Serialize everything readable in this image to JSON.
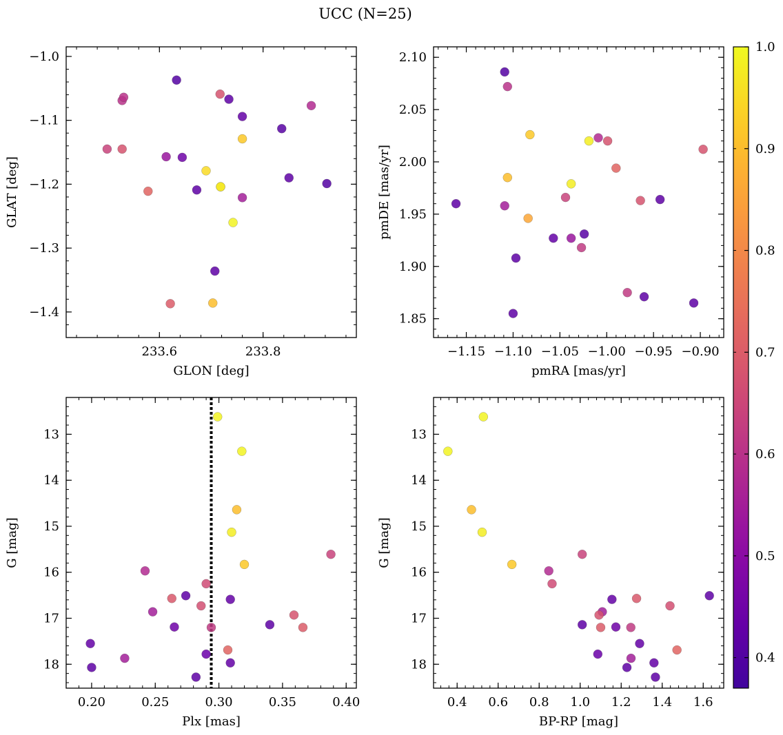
{
  "figure": {
    "title": "UCC (N=25)"
  },
  "colorbar": {
    "colormap": "plasma",
    "range": [
      0.37,
      1.0
    ],
    "ticks": [
      0.4,
      0.5,
      0.6,
      0.7,
      0.8,
      0.9,
      1.0
    ],
    "tick_labels": [
      "0.4",
      "0.5",
      "0.6",
      "0.7",
      "0.8",
      "0.9",
      "1.0"
    ]
  },
  "chart_data": [
    {
      "type": "scatter",
      "panel": "top-left",
      "xlabel": "GLON [deg]",
      "ylabel": "GLAT [deg]",
      "xlim": [
        233.42,
        233.98
      ],
      "ylim": [
        -1.44,
        -0.985
      ],
      "y_inverted": false,
      "xticks": [
        233.6,
        233.8
      ],
      "xtick_labels": [
        "233.6",
        "233.8"
      ],
      "yticks": [
        -1.0,
        -1.1,
        -1.2,
        -1.3,
        -1.4
      ],
      "ytick_labels": [
        "−1.0",
        "−1.1",
        "−1.2",
        "−1.3",
        "−1.4"
      ],
      "points": [
        {
          "x": 233.633,
          "y": -1.037,
          "c": 0.4
        },
        {
          "x": 233.717,
          "y": -1.059,
          "c": 0.68
        },
        {
          "x": 233.734,
          "y": -1.067,
          "c": 0.42
        },
        {
          "x": 233.528,
          "y": -1.069,
          "c": 0.6
        },
        {
          "x": 233.531,
          "y": -1.064,
          "c": 0.6
        },
        {
          "x": 233.893,
          "y": -1.077,
          "c": 0.58
        },
        {
          "x": 233.76,
          "y": -1.094,
          "c": 0.43
        },
        {
          "x": 233.836,
          "y": -1.113,
          "c": 0.41
        },
        {
          "x": 233.76,
          "y": -1.129,
          "c": 0.92
        },
        {
          "x": 233.499,
          "y": -1.145,
          "c": 0.64
        },
        {
          "x": 233.528,
          "y": -1.145,
          "c": 0.68
        },
        {
          "x": 233.613,
          "y": -1.157,
          "c": 0.53
        },
        {
          "x": 233.644,
          "y": -1.158,
          "c": 0.45
        },
        {
          "x": 233.69,
          "y": -1.179,
          "c": 0.95
        },
        {
          "x": 233.85,
          "y": -1.19,
          "c": 0.42
        },
        {
          "x": 233.923,
          "y": -1.199,
          "c": 0.4
        },
        {
          "x": 233.718,
          "y": -1.204,
          "c": 0.98
        },
        {
          "x": 233.718,
          "y": -1.204,
          "c": 0.97
        },
        {
          "x": 233.672,
          "y": -1.209,
          "c": 0.42
        },
        {
          "x": 233.578,
          "y": -1.211,
          "c": 0.72
        },
        {
          "x": 233.76,
          "y": -1.221,
          "c": 0.55
        },
        {
          "x": 233.742,
          "y": -1.26,
          "c": 0.99
        },
        {
          "x": 233.707,
          "y": -1.336,
          "c": 0.42
        },
        {
          "x": 233.621,
          "y": -1.387,
          "c": 0.7
        },
        {
          "x": 233.703,
          "y": -1.386,
          "c": 0.9
        }
      ]
    },
    {
      "type": "scatter",
      "panel": "top-right",
      "xlabel": "pmRA [mas/yr]",
      "ylabel": "pmDE [mas/yr]",
      "xlim": [
        -1.185,
        -0.875
      ],
      "ylim": [
        1.832,
        2.11
      ],
      "y_inverted": false,
      "xticks": [
        -1.15,
        -1.1,
        -1.05,
        -1.0,
        -0.95,
        -0.9
      ],
      "xtick_labels": [
        "−1.15",
        "−1.10",
        "−1.05",
        "−1.00",
        "−0.95",
        "−0.90"
      ],
      "yticks": [
        1.85,
        1.9,
        1.95,
        2.0,
        2.05,
        2.1
      ],
      "ytick_labels": [
        "1.85",
        "1.90",
        "1.95",
        "2.00",
        "2.05",
        "2.10"
      ],
      "points": [
        {
          "x": -1.109,
          "y": 2.086,
          "c": 0.4
        },
        {
          "x": -1.106,
          "y": 2.072,
          "c": 0.6
        },
        {
          "x": -1.082,
          "y": 2.026,
          "c": 0.92
        },
        {
          "x": -1.009,
          "y": 2.023,
          "c": 0.58
        },
        {
          "x": -1.019,
          "y": 2.02,
          "c": 0.98
        },
        {
          "x": -0.999,
          "y": 2.02,
          "c": 0.68
        },
        {
          "x": -0.897,
          "y": 2.012,
          "c": 0.68
        },
        {
          "x": -0.99,
          "y": 1.994,
          "c": 0.72
        },
        {
          "x": -1.106,
          "y": 1.985,
          "c": 0.9
        },
        {
          "x": -1.038,
          "y": 1.979,
          "c": 0.98
        },
        {
          "x": -1.044,
          "y": 1.966,
          "c": 0.64
        },
        {
          "x": -0.964,
          "y": 1.963,
          "c": 0.68
        },
        {
          "x": -0.943,
          "y": 1.964,
          "c": 0.42
        },
        {
          "x": -1.161,
          "y": 1.96,
          "c": 0.42
        },
        {
          "x": -1.109,
          "y": 1.958,
          "c": 0.55
        },
        {
          "x": -1.084,
          "y": 1.946,
          "c": 0.86
        },
        {
          "x": -1.024,
          "y": 1.931,
          "c": 0.41
        },
        {
          "x": -1.057,
          "y": 1.927,
          "c": 0.43
        },
        {
          "x": -1.038,
          "y": 1.927,
          "c": 0.53
        },
        {
          "x": -1.027,
          "y": 1.918,
          "c": 0.62
        },
        {
          "x": -1.097,
          "y": 1.908,
          "c": 0.42
        },
        {
          "x": -0.978,
          "y": 1.875,
          "c": 0.62
        },
        {
          "x": -0.96,
          "y": 1.871,
          "c": 0.42
        },
        {
          "x": -0.907,
          "y": 1.865,
          "c": 0.42
        },
        {
          "x": -1.1,
          "y": 1.855,
          "c": 0.42
        }
      ]
    },
    {
      "type": "scatter",
      "panel": "bottom-left",
      "xlabel": "Plx [mas]",
      "ylabel": "G [mag]",
      "xlim": [
        0.18,
        0.408
      ],
      "ylim": [
        18.52,
        12.2
      ],
      "y_inverted": true,
      "xticks": [
        0.2,
        0.25,
        0.3,
        0.35,
        0.4
      ],
      "xtick_labels": [
        "0.20",
        "0.25",
        "0.30",
        "0.35",
        "0.40"
      ],
      "yticks": [
        13,
        14,
        15,
        16,
        17,
        18
      ],
      "ytick_labels": [
        "13",
        "14",
        "15",
        "16",
        "17",
        "18"
      ],
      "vline": 0.294,
      "points": [
        {
          "x": 0.299,
          "y": 12.62,
          "c": 0.99
        },
        {
          "x": 0.318,
          "y": 13.37,
          "c": 0.99
        },
        {
          "x": 0.314,
          "y": 14.64,
          "c": 0.9
        },
        {
          "x": 0.31,
          "y": 15.13,
          "c": 0.98
        },
        {
          "x": 0.388,
          "y": 15.61,
          "c": 0.64
        },
        {
          "x": 0.32,
          "y": 15.83,
          "c": 0.92
        },
        {
          "x": 0.242,
          "y": 15.97,
          "c": 0.58
        },
        {
          "x": 0.29,
          "y": 16.25,
          "c": 0.66
        },
        {
          "x": 0.274,
          "y": 16.51,
          "c": 0.42
        },
        {
          "x": 0.263,
          "y": 16.57,
          "c": 0.69
        },
        {
          "x": 0.309,
          "y": 16.59,
          "c": 0.43
        },
        {
          "x": 0.286,
          "y": 16.73,
          "c": 0.67
        },
        {
          "x": 0.248,
          "y": 16.86,
          "c": 0.55
        },
        {
          "x": 0.359,
          "y": 16.93,
          "c": 0.68
        },
        {
          "x": 0.34,
          "y": 17.14,
          "c": 0.42
        },
        {
          "x": 0.265,
          "y": 17.19,
          "c": 0.45
        },
        {
          "x": 0.294,
          "y": 17.2,
          "c": 0.62
        },
        {
          "x": 0.366,
          "y": 17.2,
          "c": 0.7
        },
        {
          "x": 0.199,
          "y": 17.55,
          "c": 0.43
        },
        {
          "x": 0.307,
          "y": 17.69,
          "c": 0.72
        },
        {
          "x": 0.29,
          "y": 17.78,
          "c": 0.44
        },
        {
          "x": 0.226,
          "y": 17.87,
          "c": 0.55
        },
        {
          "x": 0.309,
          "y": 17.97,
          "c": 0.43
        },
        {
          "x": 0.2,
          "y": 18.07,
          "c": 0.42
        },
        {
          "x": 0.282,
          "y": 18.28,
          "c": 0.42
        }
      ]
    },
    {
      "type": "scatter",
      "panel": "bottom-right",
      "xlabel": "BP-RP [mag]",
      "ylabel": "G [mag]",
      "xlim": [
        0.285,
        1.7
      ],
      "ylim": [
        18.52,
        12.2
      ],
      "y_inverted": true,
      "xticks": [
        0.4,
        0.6,
        0.8,
        1.0,
        1.2,
        1.4,
        1.6
      ],
      "xtick_labels": [
        "0.4",
        "0.6",
        "0.8",
        "1.0",
        "1.2",
        "1.4",
        "1.6"
      ],
      "yticks": [
        13,
        14,
        15,
        16,
        17,
        18
      ],
      "ytick_labels": [
        "13",
        "14",
        "15",
        "16",
        "17",
        "18"
      ],
      "points": [
        {
          "x": 0.528,
          "y": 12.62,
          "c": 0.99
        },
        {
          "x": 0.355,
          "y": 13.37,
          "c": 0.99
        },
        {
          "x": 0.47,
          "y": 14.64,
          "c": 0.9
        },
        {
          "x": 0.522,
          "y": 15.13,
          "c": 0.98
        },
        {
          "x": 1.01,
          "y": 15.61,
          "c": 0.64
        },
        {
          "x": 0.667,
          "y": 15.83,
          "c": 0.92
        },
        {
          "x": 0.847,
          "y": 15.97,
          "c": 0.58
        },
        {
          "x": 0.863,
          "y": 16.25,
          "c": 0.66
        },
        {
          "x": 1.63,
          "y": 16.51,
          "c": 0.42
        },
        {
          "x": 1.275,
          "y": 16.57,
          "c": 0.69
        },
        {
          "x": 1.155,
          "y": 16.59,
          "c": 0.43
        },
        {
          "x": 1.438,
          "y": 16.73,
          "c": 0.67
        },
        {
          "x": 1.108,
          "y": 16.86,
          "c": 0.55
        },
        {
          "x": 1.092,
          "y": 16.93,
          "c": 0.68
        },
        {
          "x": 1.01,
          "y": 17.14,
          "c": 0.42
        },
        {
          "x": 1.174,
          "y": 17.19,
          "c": 0.45
        },
        {
          "x": 1.247,
          "y": 17.2,
          "c": 0.62
        },
        {
          "x": 1.1,
          "y": 17.2,
          "c": 0.7
        },
        {
          "x": 1.29,
          "y": 17.55,
          "c": 0.43
        },
        {
          "x": 1.472,
          "y": 17.69,
          "c": 0.72
        },
        {
          "x": 1.086,
          "y": 17.78,
          "c": 0.44
        },
        {
          "x": 1.248,
          "y": 17.87,
          "c": 0.55
        },
        {
          "x": 1.36,
          "y": 17.97,
          "c": 0.43
        },
        {
          "x": 1.228,
          "y": 18.07,
          "c": 0.42
        },
        {
          "x": 1.367,
          "y": 18.28,
          "c": 0.42
        }
      ]
    }
  ]
}
